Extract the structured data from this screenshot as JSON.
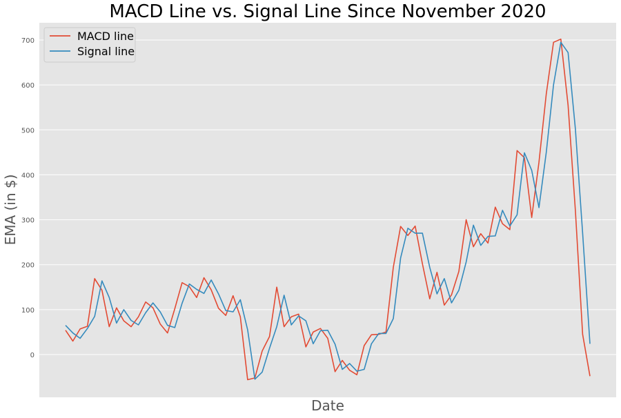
{
  "chart_data": {
    "type": "line",
    "title": "MACD Line vs. Signal Line Since November 2020",
    "xlabel": "Date",
    "ylabel": "EMA (in $)",
    "ylim": [
      -100,
      740
    ],
    "yticks": [
      0,
      100,
      200,
      300,
      400,
      500,
      600,
      700
    ],
    "grid": true,
    "legend_position": "top-left",
    "background_color": "#e5e5e5",
    "grid_color": "#ffffff",
    "x": [
      1,
      2,
      3,
      4,
      5,
      6,
      7,
      8,
      9,
      10,
      11,
      12,
      13,
      14,
      15,
      16,
      17,
      18,
      19,
      20,
      21,
      22,
      23,
      24,
      25,
      26,
      27,
      28,
      29,
      30,
      31,
      32,
      33,
      34,
      35,
      36,
      37,
      38,
      39,
      40,
      41,
      42,
      43,
      44,
      45,
      46,
      47,
      48,
      49,
      50,
      51,
      52,
      53,
      54,
      55,
      56,
      57,
      58,
      59,
      60,
      61,
      62,
      63,
      64,
      65,
      66,
      67,
      68,
      69,
      70,
      71,
      72,
      73,
      74
    ],
    "series": [
      {
        "name": "MACD line",
        "color": "#e24a33",
        "values": [
          54,
          30,
          57,
          63,
          169,
          143,
          62,
          104,
          75,
          62,
          84,
          117,
          104,
          68,
          48,
          102,
          160,
          151,
          127,
          171,
          144,
          103,
          87,
          131,
          84,
          -56,
          -52,
          8,
          40,
          150,
          62,
          84,
          90,
          17,
          50,
          58,
          36,
          -38,
          -13,
          -35,
          -45,
          20,
          44,
          45,
          50,
          194,
          285,
          265,
          286,
          202,
          124,
          183,
          110,
          133,
          185,
          300,
          240,
          269,
          248,
          328,
          291,
          278,
          454,
          438,
          305,
          428,
          580,
          695,
          702,
          555,
          320,
          45,
          -48,
          null
        ],
        "yvals_note": ""
      },
      {
        "name": "Signal line",
        "color": "#348abd",
        "values": [
          65,
          48,
          36,
          58,
          85,
          164,
          127,
          70,
          100,
          76,
          66,
          93,
          115,
          95,
          65,
          60,
          114,
          157,
          145,
          136,
          166,
          135,
          98,
          95,
          122,
          55,
          -55,
          -39,
          14,
          62,
          132,
          66,
          86,
          75,
          24,
          53,
          54,
          23,
          -33,
          -20,
          -37,
          -33,
          24,
          47,
          47,
          80,
          215,
          281,
          270,
          270,
          194,
          135,
          169,
          115,
          143,
          206,
          288,
          243,
          263,
          264,
          321,
          286,
          311,
          449,
          410,
          327,
          450,
          600,
          695,
          672,
          502,
          270,
          24,
          null
        ]
      }
    ]
  }
}
